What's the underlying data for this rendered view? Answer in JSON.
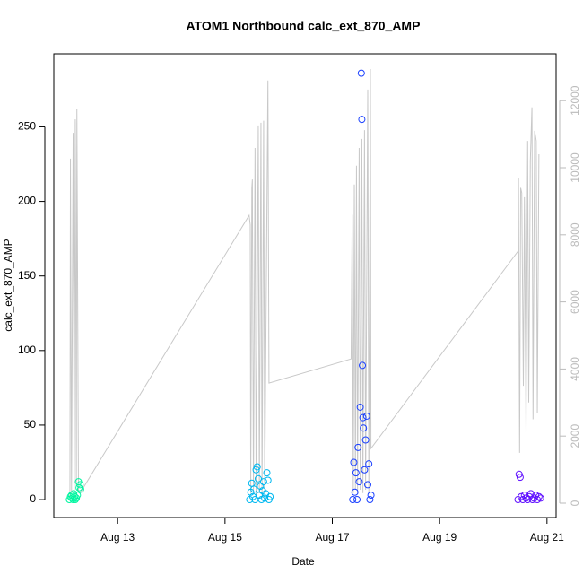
{
  "chart_data": {
    "type": "scatter",
    "title": "ATOM1 Northbound calc_ext_870_AMP",
    "x_label": "Date",
    "y_label": "calc_ext_870_AMP",
    "xlim": [
      11.81,
      21.17
    ],
    "ylim": [
      -12,
      299
    ],
    "y2lim": [
      -428,
      13396
    ],
    "xticks": [
      {
        "value": 13,
        "label": "Aug 13"
      },
      {
        "value": 15,
        "label": "Aug 15"
      },
      {
        "value": 17,
        "label": "Aug 17"
      },
      {
        "value": 19,
        "label": "Aug 19"
      },
      {
        "value": 21,
        "label": "Aug 21"
      }
    ],
    "yticks": [
      0,
      50,
      100,
      150,
      200,
      250
    ],
    "y2ticks": [
      0,
      2000,
      4000,
      6000,
      8000,
      10000,
      12000
    ],
    "series": [
      {
        "color": "#00f5a0",
        "x": [
          12.1,
          12.12,
          12.14,
          12.15,
          12.17,
          12.18,
          12.2,
          12.21,
          12.23,
          12.25,
          12.27,
          12.28,
          12.3,
          12.31
        ],
        "values": [
          0,
          2,
          3,
          1,
          0,
          4,
          2,
          0,
          1,
          3,
          12,
          8,
          10,
          7
        ]
      },
      {
        "color": "#00b8f0",
        "x": [
          15.46,
          15.48,
          15.5,
          15.52,
          15.54,
          15.56,
          15.58,
          15.6,
          15.62,
          15.64,
          15.66,
          15.68,
          15.7,
          15.72,
          15.74,
          15.76,
          15.78,
          15.8,
          15.82,
          15.84
        ],
        "values": [
          0,
          5,
          11,
          2,
          7,
          0,
          20,
          22,
          14,
          3,
          9,
          0,
          6,
          12,
          1,
          4,
          18,
          13,
          0,
          2
        ]
      },
      {
        "color": "#1a40ff",
        "x": [
          17.38,
          17.4,
          17.42,
          17.44,
          17.46,
          17.48,
          17.5,
          17.52,
          17.54,
          17.55,
          17.56,
          17.57,
          17.58,
          17.6,
          17.62,
          17.64,
          17.66,
          17.68,
          17.7,
          17.72
        ],
        "values": [
          0,
          25,
          5,
          18,
          0,
          35,
          12,
          62,
          286,
          255,
          90,
          55,
          48,
          20,
          40,
          56,
          10,
          24,
          0,
          3
        ]
      },
      {
        "color": "#6010ff",
        "x": [
          20.46,
          20.48,
          20.5,
          20.52,
          20.55,
          20.58,
          20.61,
          20.64,
          20.67,
          20.7,
          20.73,
          20.76,
          20.79,
          20.82,
          20.85,
          20.88
        ],
        "values": [
          0,
          17,
          15,
          2,
          0,
          3,
          1,
          0,
          2,
          4,
          0,
          1,
          3,
          0,
          2,
          1
        ]
      }
    ],
    "line": {
      "color": "#c8c8c8",
      "axis": "y2",
      "x": [
        12.11,
        12.12,
        12.14,
        12.17,
        12.19,
        12.21,
        12.23,
        12.24,
        12.27,
        12.3,
        15.45,
        15.47,
        15.48,
        15.5,
        15.51,
        15.53,
        15.56,
        15.58,
        15.62,
        15.64,
        15.67,
        15.69,
        15.72,
        15.74,
        15.8,
        15.82,
        17.35,
        17.37,
        17.39,
        17.41,
        17.43,
        17.45,
        17.47,
        17.5,
        17.52,
        17.55,
        17.57,
        17.6,
        17.62,
        17.66,
        17.68,
        17.71,
        17.72,
        20.46,
        20.47,
        20.49,
        20.51,
        20.53,
        20.56,
        20.58,
        20.61,
        20.64,
        20.66,
        20.69,
        20.72,
        20.74,
        20.77,
        20.8,
        20.82,
        20.85
      ],
      "values": [
        200,
        10270,
        300,
        11040,
        400,
        11440,
        500,
        11740,
        350,
        300,
        8580,
        8300,
        300,
        9400,
        9650,
        300,
        10590,
        200,
        11260,
        300,
        11340,
        200,
        11400,
        300,
        12600,
        3580,
        4300,
        8600,
        300,
        9500,
        400,
        10060,
        300,
        10590,
        400,
        10860,
        300,
        11120,
        400,
        12330,
        300,
        12940,
        1630,
        7510,
        9700,
        1500,
        9400,
        9250,
        3500,
        9120,
        2100,
        10800,
        3000,
        10200,
        11800,
        2500,
        11100,
        10800,
        2700,
        10400
      ]
    }
  }
}
